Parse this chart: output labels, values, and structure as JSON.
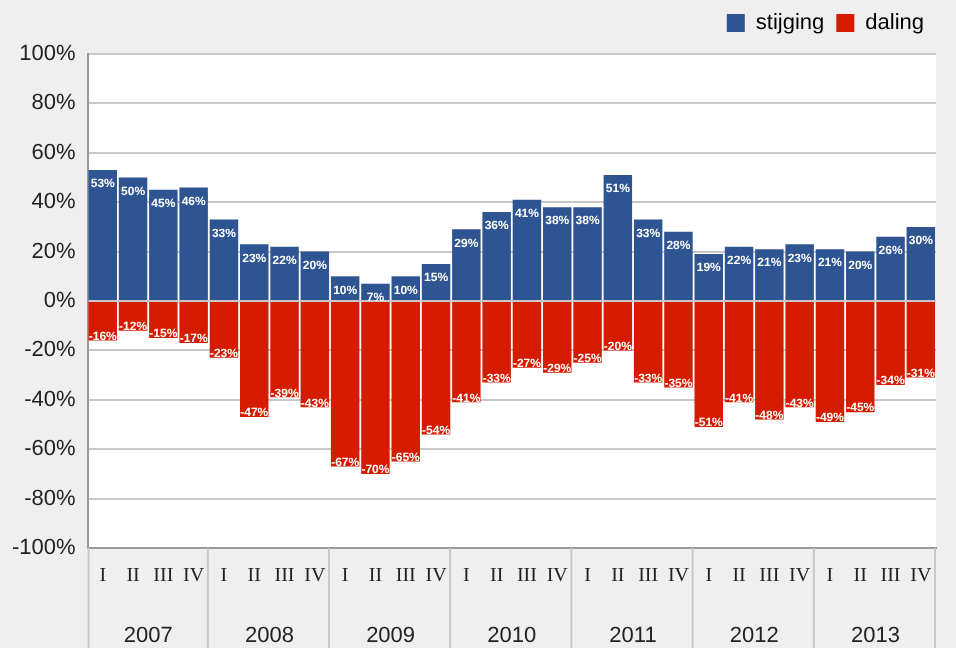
{
  "chart_data": {
    "type": "bar",
    "stacked": true,
    "categories": [
      "I",
      "II",
      "III",
      "IV",
      "I",
      "II",
      "III",
      "IV",
      "I",
      "II",
      "III",
      "IV",
      "I",
      "II",
      "III",
      "IV",
      "I",
      "II",
      "III",
      "IV",
      "I",
      "II",
      "III",
      "IV",
      "I",
      "II",
      "III",
      "IV"
    ],
    "series": [
      {
        "name": "stijging",
        "color": "#2e5592",
        "values": [
          53,
          50,
          45,
          46,
          33,
          23,
          22,
          20,
          10,
          7,
          10,
          15,
          29,
          36,
          41,
          38,
          38,
          51,
          33,
          28,
          19,
          22,
          21,
          23,
          21,
          20,
          26,
          30
        ],
        "value_labels": [
          "53%",
          "50%",
          "45%",
          "46%",
          "33%",
          "23%",
          "22%",
          "20%",
          "10%",
          "7%",
          "10%",
          "15%",
          "29%",
          "36%",
          "41%",
          "38%",
          "38%",
          "51%",
          "33%",
          "28%",
          "19%",
          "22%",
          "21%",
          "23%",
          "21%",
          "20%",
          "26%",
          "30%"
        ]
      },
      {
        "name": "daling",
        "color": "#d61c00",
        "values": [
          -16,
          -12,
          -15,
          -17,
          -23,
          -47,
          -39,
          -43,
          -67,
          -70,
          -65,
          -54,
          -41,
          -33,
          -27,
          -29,
          -25,
          -20,
          -33,
          -35,
          -51,
          -41,
          -48,
          -43,
          -49,
          -45,
          -34,
          -31
        ],
        "value_labels": [
          "-16%",
          "-12%",
          "-15%",
          "-17%",
          "-23%",
          "-47%",
          "-39%",
          "-43%",
          "-67%",
          "-70%",
          "-65%",
          "-54%",
          "-41%",
          "-33%",
          "-27%",
          "-29%",
          "-25%",
          "-20%",
          "-33%",
          "-35%",
          "-51%",
          "-41%",
          "-48%",
          "-43%",
          "-49%",
          "-45%",
          "-34%",
          "-31%"
        ]
      }
    ],
    "ylim": [
      -100,
      100
    ],
    "yticks": [
      {
        "value": -100,
        "label": "-100%"
      },
      {
        "value": -80,
        "label": "-80%"
      },
      {
        "value": -60,
        "label": "-60%"
      },
      {
        "value": -40,
        "label": "-40%"
      },
      {
        "value": -20,
        "label": "-20%"
      },
      {
        "value": 0,
        "label": "0%"
      },
      {
        "value": 20,
        "label": "20%"
      },
      {
        "value": 40,
        "label": "40%"
      },
      {
        "value": 60,
        "label": "60%"
      },
      {
        "value": 80,
        "label": "80%"
      },
      {
        "value": 100,
        "label": "100%"
      }
    ],
    "grid": "y",
    "legend": "top right",
    "annotations": [
      "2007",
      "2008",
      "2009",
      "2010",
      "2011",
      "2012",
      "2013"
    ]
  }
}
